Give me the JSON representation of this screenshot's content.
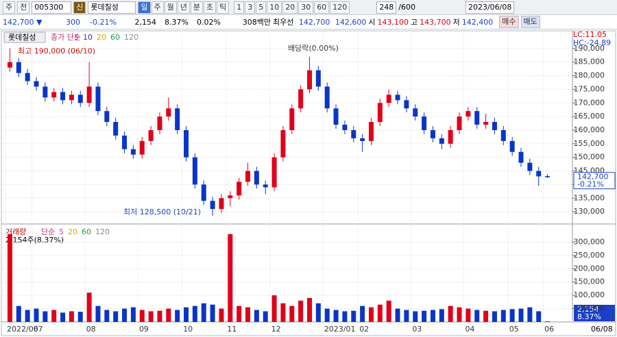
{
  "toolbar": {
    "market": "주",
    "scope": "전",
    "code": "005300",
    "badge": "신",
    "name": "롯데칠성",
    "periods": [
      "일",
      "주",
      "월",
      "년",
      "분",
      "초",
      "틱"
    ],
    "intervals": [
      "1",
      "3",
      "5",
      "10",
      "20",
      "30",
      "60",
      "120"
    ],
    "count": "248",
    "count_max": "/600",
    "date": "2023/06/08"
  },
  "quote": {
    "price": "142,700 ▼",
    "change": "300",
    "change_pct": "-0.21%",
    "volume": "2,154",
    "volume_pct": "8.37%",
    "turnover_pct": "0.02%",
    "amount": "308백만",
    "best_label": "최우선",
    "best_ask": "142,700",
    "best_bid": "142,600",
    "open_label": "시",
    "open": "143,100",
    "high_label": "고",
    "high": "143,700",
    "low_label": "저",
    "low": "142,400",
    "buy": "매수",
    "sell": "매도"
  },
  "chart_data": {
    "type": "candlestick",
    "panel_name": "롯데칠성",
    "ma_label": "종가 단순",
    "ma_periods": [
      "5",
      "10",
      "20",
      "60",
      "120"
    ],
    "lc": "LC:11.05",
    "hc": "HC:-24.89",
    "high_note": "최고 190,000 (06/10)",
    "low_note": "최저 128,500 (10/21)",
    "event_note": "배당락(0.00%)",
    "last_price_label": "142,700",
    "last_change_label": "-0.21%",
    "categories": [
      "2022/06",
      null,
      null,
      "07",
      null,
      null,
      null,
      null,
      null,
      "08",
      null,
      null,
      null,
      null,
      null,
      "09",
      null,
      null,
      null,
      null,
      "10",
      null,
      null,
      null,
      null,
      "11",
      null,
      null,
      null,
      null,
      "12",
      null,
      null,
      null,
      null,
      null,
      "2023/01",
      null,
      null,
      null,
      "02",
      null,
      null,
      null,
      null,
      null,
      "03",
      null,
      null,
      null,
      null,
      null,
      "04",
      null,
      null,
      null,
      null,
      "05",
      null,
      null,
      null,
      "06"
    ],
    "last_date": "06/08",
    "ohlc": [
      [
        183000,
        190000,
        181500,
        185000
      ],
      [
        185000,
        186500,
        179500,
        181000
      ],
      [
        181000,
        182500,
        176500,
        178000
      ],
      [
        178000,
        179500,
        174500,
        176000
      ],
      [
        176000,
        177500,
        170500,
        172000
      ],
      [
        172000,
        175500,
        170500,
        174000
      ],
      [
        174000,
        175500,
        169500,
        171000
      ],
      [
        171000,
        174500,
        169500,
        173000
      ],
      [
        173000,
        174500,
        168500,
        170000
      ],
      [
        170000,
        185000,
        168500,
        176000
      ],
      [
        176000,
        177500,
        165500,
        167000
      ],
      [
        167000,
        168500,
        161500,
        163000
      ],
      [
        163000,
        164500,
        156500,
        158000
      ],
      [
        158000,
        159500,
        151500,
        153000
      ],
      [
        153000,
        154500,
        149500,
        151000
      ],
      [
        151000,
        157500,
        149500,
        156000
      ],
      [
        156000,
        161500,
        154500,
        160000
      ],
      [
        160000,
        166500,
        158500,
        165000
      ],
      [
        165000,
        172000,
        163500,
        168000
      ],
      [
        168000,
        169500,
        158500,
        160000
      ],
      [
        160000,
        161500,
        148500,
        150000
      ],
      [
        150000,
        151500,
        138500,
        140000
      ],
      [
        140000,
        141500,
        132500,
        134000
      ],
      [
        134000,
        135500,
        128500,
        131000
      ],
      [
        131000,
        136500,
        129500,
        135000
      ],
      [
        135000,
        137500,
        132000,
        136000
      ],
      [
        136000,
        142500,
        134500,
        141000
      ],
      [
        141000,
        148000,
        139500,
        145000
      ],
      [
        145000,
        146500,
        138500,
        140000
      ],
      [
        140000,
        141500,
        136500,
        139000
      ],
      [
        139000,
        151500,
        137500,
        150000
      ],
      [
        150000,
        161500,
        148500,
        160000
      ],
      [
        160000,
        169500,
        158500,
        168000
      ],
      [
        168000,
        176500,
        166500,
        175000
      ],
      [
        175000,
        187000,
        173500,
        182000
      ],
      [
        182000,
        183500,
        174500,
        176000
      ],
      [
        176000,
        177500,
        166500,
        168000
      ],
      [
        168000,
        169500,
        160500,
        162000
      ],
      [
        162000,
        163500,
        158500,
        160000
      ],
      [
        160000,
        161500,
        155500,
        157000
      ],
      [
        157000,
        158500,
        152000,
        156000
      ],
      [
        156000,
        164500,
        154500,
        163000
      ],
      [
        163000,
        171500,
        161500,
        170000
      ],
      [
        170000,
        175000,
        168500,
        173000
      ],
      [
        173000,
        174500,
        169500,
        171000
      ],
      [
        171000,
        172500,
        166500,
        168000
      ],
      [
        168000,
        169500,
        163500,
        165000
      ],
      [
        165000,
        166500,
        158500,
        160000
      ],
      [
        160000,
        161500,
        155500,
        157000
      ],
      [
        157000,
        158500,
        153000,
        155000
      ],
      [
        155000,
        161500,
        153500,
        160000
      ],
      [
        160000,
        166500,
        158500,
        165000
      ],
      [
        165000,
        168500,
        163500,
        167000
      ],
      [
        167000,
        168500,
        160500,
        162000
      ],
      [
        162000,
        166000,
        160500,
        163000
      ],
      [
        163000,
        164500,
        158500,
        160000
      ],
      [
        160000,
        161500,
        154500,
        156000
      ],
      [
        156000,
        157500,
        150500,
        152000
      ],
      [
        152000,
        153500,
        146500,
        148000
      ],
      [
        148000,
        149500,
        143500,
        145000
      ],
      [
        145000,
        146500,
        139500,
        143000
      ],
      [
        143100,
        143700,
        142400,
        142700
      ]
    ],
    "ylim": [
      126000,
      196000
    ],
    "yticks": [
      {
        "value": 130000,
        "label": "130,000"
      },
      {
        "value": 135000,
        "label": "135,000"
      },
      {
        "value": 140000,
        "label": "140,000"
      },
      {
        "value": 145000,
        "label": "145,000"
      },
      {
        "value": 150000,
        "label": "150,000"
      },
      {
        "value": 155000,
        "label": "155,000"
      },
      {
        "value": 160000,
        "label": "160,000"
      },
      {
        "value": 165000,
        "label": "165,000"
      },
      {
        "value": 170000,
        "label": "170,000"
      },
      {
        "value": 175000,
        "label": "175,000"
      },
      {
        "value": 180000,
        "label": "180,000"
      },
      {
        "value": 185000,
        "label": "185,000"
      },
      {
        "value": 190000,
        "label": "190,000"
      }
    ],
    "up_color": "#e0001b",
    "down_color": "#0a35c8",
    "grid": true,
    "volume_name": "거래량",
    "volume_ma_label": "단순",
    "volume_ma_periods": [
      "5",
      "20",
      "60",
      "120"
    ],
    "volume_note": "2,154주(8.37%)",
    "volume_tag": "2,154",
    "volume_tag_pct": "8.37%",
    "volume": [
      330000,
      60000,
      45000,
      50000,
      40000,
      45000,
      35000,
      40000,
      38000,
      110000,
      60000,
      45000,
      40000,
      50000,
      55000,
      45000,
      40000,
      42000,
      50000,
      45000,
      55000,
      60000,
      70000,
      65000,
      50000,
      330000,
      60000,
      55000,
      45000,
      40000,
      100000,
      70000,
      60000,
      80000,
      90000,
      70000,
      50000,
      45000,
      40000,
      42000,
      60000,
      55000,
      65000,
      80000,
      50000,
      45000,
      40000,
      42000,
      45000,
      48000,
      60000,
      55000,
      50000,
      45000,
      42000,
      40000,
      45000,
      48000,
      50000,
      55000,
      40000,
      2154
    ],
    "vlim": [
      0,
      355000
    ],
    "vticks": [
      {
        "value": 50000,
        "label": "50,000"
      },
      {
        "value": 100000,
        "label": "100,000"
      },
      {
        "value": 150000,
        "label": "150,000"
      },
      {
        "value": 200000,
        "label": "200,000"
      },
      {
        "value": 250000,
        "label": "250,000"
      },
      {
        "value": 300000,
        "label": "300,000"
      }
    ]
  }
}
